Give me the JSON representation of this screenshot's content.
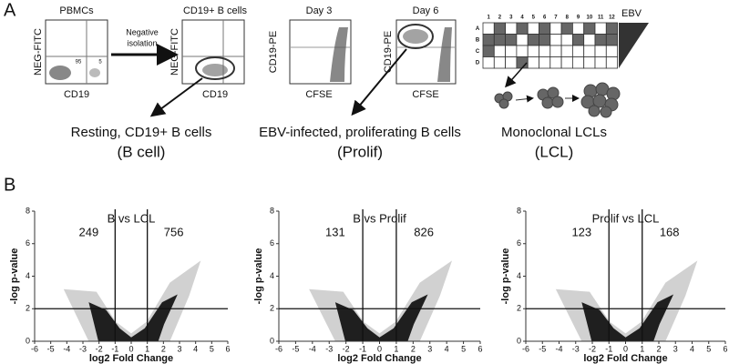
{
  "panel_a": {
    "label": "A",
    "pbmc": {
      "title": "PBMCs",
      "ylabel": "NEG-FITC",
      "xlabel": "CD19",
      "gate_left": "95",
      "gate_right": "5"
    },
    "isolation": {
      "line1": "Negative",
      "line2": "isolation"
    },
    "bcell": {
      "title": "CD19+ B cells",
      "ylabel": "NEG-FITC",
      "xlabel": "CD19"
    },
    "day3": {
      "title": "Day 3",
      "ylabel": "CD19-PE",
      "xlabel": "CFSE"
    },
    "day6": {
      "title": "Day 6",
      "ylabel": "CD19-PE",
      "xlabel": "CFSE"
    },
    "plate": {
      "label": "EBV",
      "columns": [
        "1",
        "2",
        "3",
        "4",
        "5",
        "6",
        "7",
        "8",
        "9",
        "10",
        "11",
        "12"
      ],
      "rows": [
        "A",
        "B",
        "C",
        "D"
      ]
    },
    "captions": [
      {
        "text": "Resting, CD19+ B cells",
        "short": "(B cell)"
      },
      {
        "text": "EBV-infected, proliferating B cells",
        "short": "(Prolif)"
      },
      {
        "text": "Monoclonal LCLs",
        "short": "(LCL)"
      }
    ]
  },
  "panel_b": {
    "label": "B"
  },
  "chart_data": [
    {
      "type": "scatter",
      "title": "B vs LCL",
      "xlabel": "log2 Fold Change",
      "ylabel": "-log p-value",
      "xlim": [
        -6,
        6
      ],
      "xticks": [
        -6,
        -5,
        -4,
        -3,
        -2,
        -1,
        0,
        1,
        2,
        3,
        4,
        5,
        6
      ],
      "ylim": [
        0,
        8
      ],
      "yticks": [
        0,
        2,
        4,
        6,
        8
      ],
      "thresholds_x": [
        -1,
        1
      ],
      "threshold_y": 2,
      "down_count": 249,
      "up_count": 756
    },
    {
      "type": "scatter",
      "title": "B vs Prolif",
      "xlabel": "log2 Fold Change",
      "ylabel": "-log p-value",
      "xlim": [
        -6,
        6
      ],
      "xticks": [
        -6,
        -5,
        -4,
        -3,
        -2,
        -1,
        0,
        1,
        2,
        3,
        4,
        5,
        6
      ],
      "ylim": [
        0,
        8
      ],
      "yticks": [
        0,
        2,
        4,
        6,
        8
      ],
      "thresholds_x": [
        -1,
        1
      ],
      "threshold_y": 2,
      "down_count": 131,
      "up_count": 826
    },
    {
      "type": "scatter",
      "title": "Prolif vs LCL",
      "xlabel": "log2 Fold Change",
      "ylabel": "-log p-value",
      "xlim": [
        -6,
        6
      ],
      "xticks": [
        -6,
        -5,
        -4,
        -3,
        -2,
        -1,
        0,
        1,
        2,
        3,
        4,
        5,
        6
      ],
      "ylim": [
        0,
        8
      ],
      "yticks": [
        0,
        2,
        4,
        6,
        8
      ],
      "thresholds_x": [
        -1,
        1
      ],
      "threshold_y": 2,
      "down_count": 123,
      "up_count": 168
    }
  ]
}
